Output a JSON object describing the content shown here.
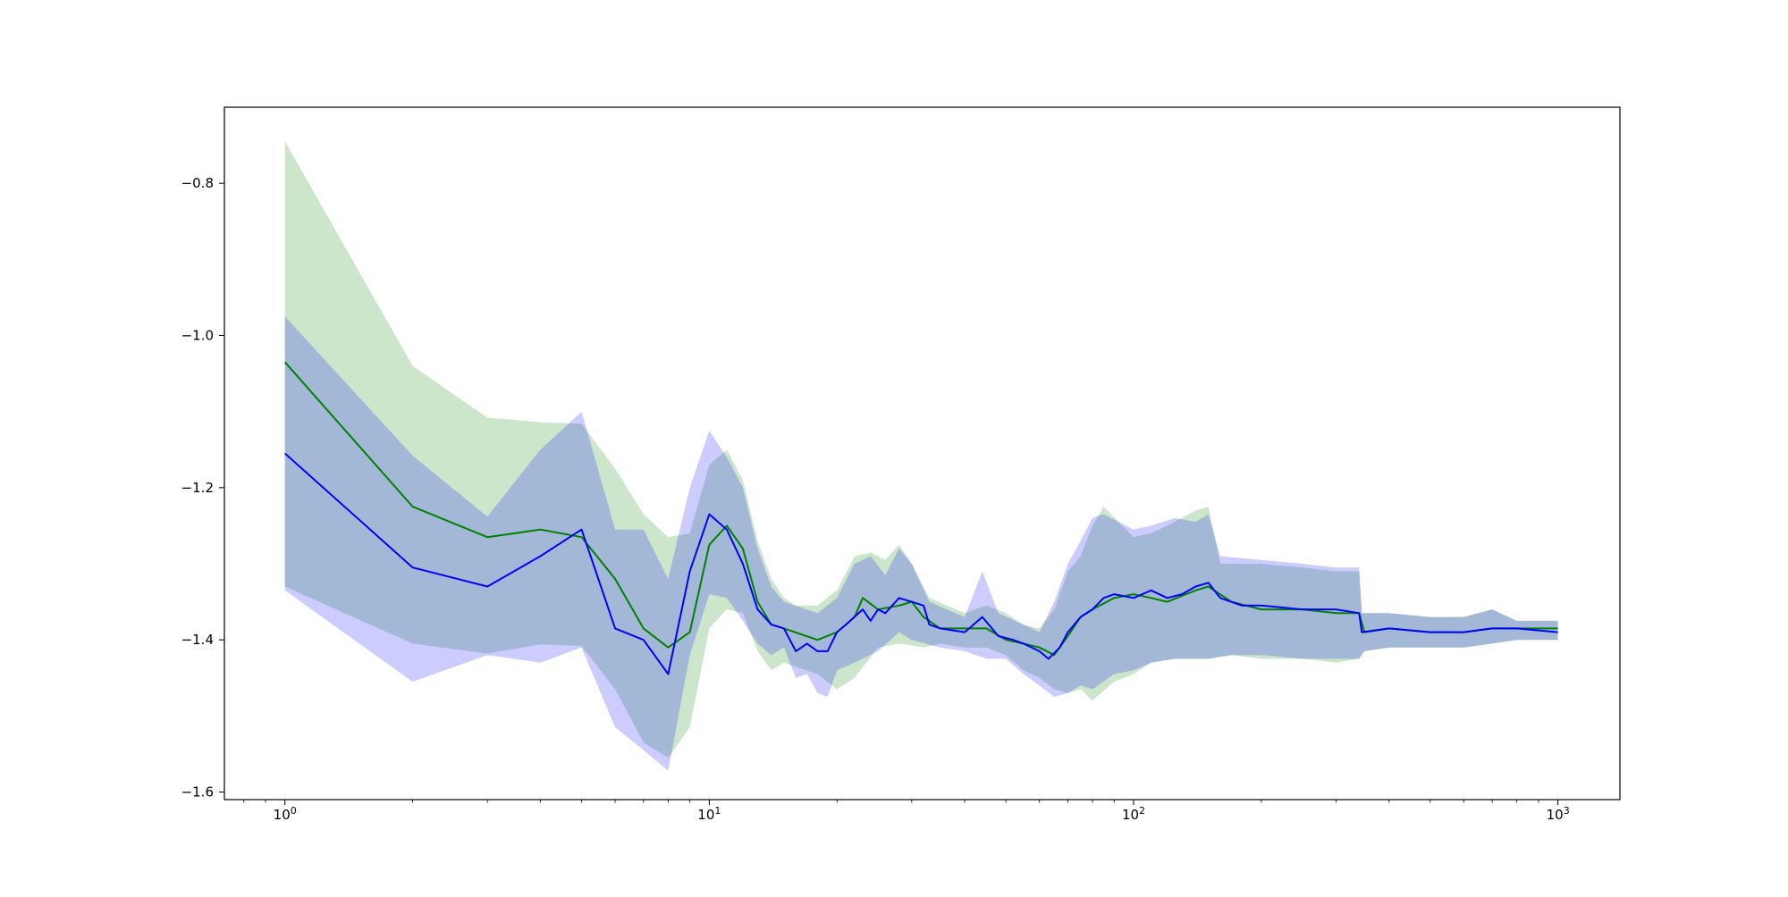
{
  "chart_data": {
    "type": "line",
    "title": "",
    "xlabel": "",
    "ylabel": "",
    "xscale": "log",
    "xlim": [
      0.72,
      1400
    ],
    "ylim": [
      -1.61,
      -0.7
    ],
    "grid": false,
    "x_ticks": [
      1,
      10,
      100,
      1000
    ],
    "x_tick_labels": [
      {
        "base": "10",
        "exp": "0"
      },
      {
        "base": "10",
        "exp": "1"
      },
      {
        "base": "10",
        "exp": "2"
      },
      {
        "base": "10",
        "exp": "3"
      }
    ],
    "y_ticks": [
      -0.8,
      -1.0,
      -1.2,
      -1.4,
      -1.6
    ],
    "y_tick_labels": [
      "−0.8",
      "−1.0",
      "−1.2",
      "−1.4",
      "−1.6"
    ],
    "series": [
      {
        "color": "#008000",
        "band_color": "#008000",
        "band_opacity": 0.2,
        "mean": [
          [
            1,
            -1.035
          ],
          [
            2,
            -1.225
          ],
          [
            3,
            -1.265
          ],
          [
            4,
            -1.255
          ],
          [
            5,
            -1.265
          ],
          [
            6,
            -1.32
          ],
          [
            7,
            -1.385
          ],
          [
            8,
            -1.41
          ],
          [
            9,
            -1.39
          ],
          [
            10,
            -1.275
          ],
          [
            11,
            -1.25
          ],
          [
            12,
            -1.28
          ],
          [
            13,
            -1.35
          ],
          [
            14,
            -1.38
          ],
          [
            15,
            -1.385
          ],
          [
            18,
            -1.4
          ],
          [
            20,
            -1.39
          ],
          [
            22,
            -1.37
          ],
          [
            23,
            -1.345
          ],
          [
            25,
            -1.36
          ],
          [
            28,
            -1.355
          ],
          [
            30,
            -1.35
          ],
          [
            32,
            -1.37
          ],
          [
            35,
            -1.385
          ],
          [
            40,
            -1.385
          ],
          [
            45,
            -1.385
          ],
          [
            50,
            -1.4
          ],
          [
            55,
            -1.405
          ],
          [
            60,
            -1.41
          ],
          [
            65,
            -1.42
          ],
          [
            70,
            -1.395
          ],
          [
            75,
            -1.37
          ],
          [
            80,
            -1.36
          ],
          [
            90,
            -1.345
          ],
          [
            100,
            -1.34
          ],
          [
            110,
            -1.345
          ],
          [
            120,
            -1.35
          ],
          [
            140,
            -1.335
          ],
          [
            150,
            -1.33
          ],
          [
            170,
            -1.35
          ],
          [
            200,
            -1.36
          ],
          [
            250,
            -1.36
          ],
          [
            300,
            -1.365
          ],
          [
            340,
            -1.365
          ],
          [
            350,
            -1.39
          ],
          [
            400,
            -1.385
          ],
          [
            500,
            -1.39
          ],
          [
            600,
            -1.39
          ],
          [
            700,
            -1.385
          ],
          [
            800,
            -1.385
          ],
          [
            1000,
            -1.385
          ]
        ],
        "upper": [
          [
            1,
            -0.745
          ],
          [
            2,
            -1.04
          ],
          [
            3,
            -1.108
          ],
          [
            4,
            -1.114
          ],
          [
            5,
            -1.116
          ],
          [
            6,
            -1.175
          ],
          [
            7,
            -1.235
          ],
          [
            8,
            -1.265
          ],
          [
            9,
            -1.26
          ],
          [
            10,
            -1.17
          ],
          [
            11,
            -1.15
          ],
          [
            12,
            -1.19
          ],
          [
            13,
            -1.27
          ],
          [
            14,
            -1.32
          ],
          [
            15,
            -1.345
          ],
          [
            16,
            -1.355
          ],
          [
            18,
            -1.355
          ],
          [
            20,
            -1.335
          ],
          [
            22,
            -1.29
          ],
          [
            24,
            -1.285
          ],
          [
            26,
            -1.295
          ],
          [
            28,
            -1.275
          ],
          [
            30,
            -1.3
          ],
          [
            33,
            -1.345
          ],
          [
            40,
            -1.365
          ],
          [
            45,
            -1.355
          ],
          [
            50,
            -1.365
          ],
          [
            55,
            -1.38
          ],
          [
            60,
            -1.385
          ],
          [
            65,
            -1.36
          ],
          [
            70,
            -1.31
          ],
          [
            75,
            -1.29
          ],
          [
            80,
            -1.25
          ],
          [
            85,
            -1.225
          ],
          [
            100,
            -1.265
          ],
          [
            110,
            -1.26
          ],
          [
            125,
            -1.245
          ],
          [
            140,
            -1.23
          ],
          [
            150,
            -1.225
          ],
          [
            160,
            -1.3
          ],
          [
            200,
            -1.3
          ],
          [
            250,
            -1.305
          ],
          [
            300,
            -1.31
          ],
          [
            340,
            -1.31
          ],
          [
            345,
            -1.365
          ],
          [
            400,
            -1.365
          ],
          [
            500,
            -1.37
          ],
          [
            600,
            -1.37
          ],
          [
            700,
            -1.36
          ],
          [
            800,
            -1.375
          ],
          [
            1000,
            -1.375
          ]
        ],
        "lower": [
          [
            1,
            -1.33
          ],
          [
            2,
            -1.405
          ],
          [
            3,
            -1.418
          ],
          [
            4,
            -1.406
          ],
          [
            5,
            -1.408
          ],
          [
            6,
            -1.465
          ],
          [
            7,
            -1.535
          ],
          [
            8,
            -1.555
          ],
          [
            9,
            -1.515
          ],
          [
            10,
            -1.385
          ],
          [
            11,
            -1.36
          ],
          [
            12,
            -1.365
          ],
          [
            13,
            -1.415
          ],
          [
            14,
            -1.44
          ],
          [
            15,
            -1.43
          ],
          [
            18,
            -1.445
          ],
          [
            20,
            -1.465
          ],
          [
            22,
            -1.45
          ],
          [
            25,
            -1.41
          ],
          [
            28,
            -1.405
          ],
          [
            32,
            -1.41
          ],
          [
            35,
            -1.405
          ],
          [
            40,
            -1.41
          ],
          [
            45,
            -1.41
          ],
          [
            50,
            -1.42
          ],
          [
            55,
            -1.44
          ],
          [
            60,
            -1.45
          ],
          [
            65,
            -1.465
          ],
          [
            70,
            -1.47
          ],
          [
            75,
            -1.465
          ],
          [
            80,
            -1.48
          ],
          [
            90,
            -1.455
          ],
          [
            100,
            -1.445
          ],
          [
            110,
            -1.43
          ],
          [
            125,
            -1.425
          ],
          [
            150,
            -1.425
          ],
          [
            170,
            -1.42
          ],
          [
            200,
            -1.425
          ],
          [
            250,
            -1.425
          ],
          [
            300,
            -1.43
          ],
          [
            340,
            -1.425
          ],
          [
            350,
            -1.415
          ],
          [
            400,
            -1.41
          ],
          [
            500,
            -1.41
          ],
          [
            600,
            -1.41
          ],
          [
            700,
            -1.405
          ],
          [
            800,
            -1.4
          ],
          [
            1000,
            -1.4
          ]
        ]
      },
      {
        "color": "#0000ff",
        "band_color": "#0000ff",
        "band_opacity": 0.2,
        "mean": [
          [
            1,
            -1.155
          ],
          [
            2,
            -1.305
          ],
          [
            3,
            -1.33
          ],
          [
            4,
            -1.29
          ],
          [
            5,
            -1.255
          ],
          [
            6,
            -1.385
          ],
          [
            7,
            -1.4
          ],
          [
            8,
            -1.445
          ],
          [
            9,
            -1.31
          ],
          [
            10,
            -1.235
          ],
          [
            11,
            -1.255
          ],
          [
            12,
            -1.3
          ],
          [
            13,
            -1.36
          ],
          [
            14,
            -1.38
          ],
          [
            15,
            -1.385
          ],
          [
            16,
            -1.415
          ],
          [
            17,
            -1.405
          ],
          [
            18,
            -1.415
          ],
          [
            19,
            -1.415
          ],
          [
            20,
            -1.39
          ],
          [
            21,
            -1.38
          ],
          [
            23,
            -1.36
          ],
          [
            24,
            -1.375
          ],
          [
            25,
            -1.36
          ],
          [
            26,
            -1.365
          ],
          [
            28,
            -1.345
          ],
          [
            30,
            -1.35
          ],
          [
            32,
            -1.355
          ],
          [
            33,
            -1.38
          ],
          [
            35,
            -1.385
          ],
          [
            40,
            -1.39
          ],
          [
            44,
            -1.37
          ],
          [
            48,
            -1.395
          ],
          [
            52,
            -1.4
          ],
          [
            55,
            -1.405
          ],
          [
            60,
            -1.415
          ],
          [
            63,
            -1.425
          ],
          [
            67,
            -1.41
          ],
          [
            70,
            -1.39
          ],
          [
            75,
            -1.37
          ],
          [
            80,
            -1.36
          ],
          [
            85,
            -1.345
          ],
          [
            90,
            -1.34
          ],
          [
            100,
            -1.345
          ],
          [
            110,
            -1.335
          ],
          [
            120,
            -1.345
          ],
          [
            130,
            -1.34
          ],
          [
            140,
            -1.33
          ],
          [
            150,
            -1.325
          ],
          [
            160,
            -1.345
          ],
          [
            180,
            -1.355
          ],
          [
            200,
            -1.355
          ],
          [
            250,
            -1.36
          ],
          [
            300,
            -1.36
          ],
          [
            340,
            -1.365
          ],
          [
            345,
            -1.39
          ],
          [
            400,
            -1.385
          ],
          [
            500,
            -1.39
          ],
          [
            600,
            -1.39
          ],
          [
            700,
            -1.385
          ],
          [
            800,
            -1.385
          ],
          [
            1000,
            -1.39
          ]
        ],
        "upper": [
          [
            1,
            -0.975
          ],
          [
            2,
            -1.158
          ],
          [
            3,
            -1.238
          ],
          [
            4,
            -1.15
          ],
          [
            5,
            -1.1
          ],
          [
            6,
            -1.255
          ],
          [
            7,
            -1.255
          ],
          [
            8,
            -1.32
          ],
          [
            9,
            -1.2
          ],
          [
            10,
            -1.125
          ],
          [
            11,
            -1.16
          ],
          [
            12,
            -1.2
          ],
          [
            13,
            -1.28
          ],
          [
            14,
            -1.33
          ],
          [
            15,
            -1.35
          ],
          [
            18,
            -1.365
          ],
          [
            20,
            -1.345
          ],
          [
            22,
            -1.3
          ],
          [
            24,
            -1.29
          ],
          [
            26,
            -1.315
          ],
          [
            28,
            -1.28
          ],
          [
            30,
            -1.3
          ],
          [
            33,
            -1.35
          ],
          [
            40,
            -1.37
          ],
          [
            44,
            -1.31
          ],
          [
            48,
            -1.365
          ],
          [
            55,
            -1.38
          ],
          [
            60,
            -1.39
          ],
          [
            65,
            -1.35
          ],
          [
            70,
            -1.3
          ],
          [
            75,
            -1.27
          ],
          [
            80,
            -1.24
          ],
          [
            85,
            -1.235
          ],
          [
            100,
            -1.255
          ],
          [
            110,
            -1.25
          ],
          [
            125,
            -1.24
          ],
          [
            140,
            -1.245
          ],
          [
            150,
            -1.235
          ],
          [
            160,
            -1.29
          ],
          [
            200,
            -1.295
          ],
          [
            250,
            -1.3
          ],
          [
            300,
            -1.305
          ],
          [
            340,
            -1.305
          ],
          [
            345,
            -1.365
          ],
          [
            400,
            -1.365
          ],
          [
            500,
            -1.37
          ],
          [
            600,
            -1.37
          ],
          [
            700,
            -1.36
          ],
          [
            800,
            -1.375
          ],
          [
            1000,
            -1.375
          ]
        ],
        "lower": [
          [
            1,
            -1.335
          ],
          [
            2,
            -1.455
          ],
          [
            3,
            -1.42
          ],
          [
            4,
            -1.43
          ],
          [
            5,
            -1.41
          ],
          [
            6,
            -1.515
          ],
          [
            7,
            -1.545
          ],
          [
            8,
            -1.572
          ],
          [
            9,
            -1.42
          ],
          [
            10,
            -1.34
          ],
          [
            11,
            -1.345
          ],
          [
            12,
            -1.375
          ],
          [
            13,
            -1.405
          ],
          [
            14,
            -1.42
          ],
          [
            15,
            -1.41
          ],
          [
            16,
            -1.45
          ],
          [
            17,
            -1.445
          ],
          [
            18,
            -1.47
          ],
          [
            19,
            -1.475
          ],
          [
            20,
            -1.44
          ],
          [
            22,
            -1.43
          ],
          [
            25,
            -1.415
          ],
          [
            28,
            -1.39
          ],
          [
            30,
            -1.4
          ],
          [
            35,
            -1.41
          ],
          [
            40,
            -1.415
          ],
          [
            45,
            -1.425
          ],
          [
            50,
            -1.425
          ],
          [
            55,
            -1.445
          ],
          [
            60,
            -1.46
          ],
          [
            65,
            -1.475
          ],
          [
            70,
            -1.47
          ],
          [
            75,
            -1.46
          ],
          [
            80,
            -1.465
          ],
          [
            90,
            -1.445
          ],
          [
            100,
            -1.44
          ],
          [
            110,
            -1.43
          ],
          [
            125,
            -1.425
          ],
          [
            150,
            -1.425
          ],
          [
            170,
            -1.42
          ],
          [
            200,
            -1.42
          ],
          [
            250,
            -1.425
          ],
          [
            300,
            -1.425
          ],
          [
            340,
            -1.425
          ],
          [
            350,
            -1.415
          ],
          [
            400,
            -1.41
          ],
          [
            500,
            -1.41
          ],
          [
            600,
            -1.41
          ],
          [
            700,
            -1.405
          ],
          [
            800,
            -1.4
          ],
          [
            1000,
            -1.4
          ]
        ]
      }
    ]
  }
}
